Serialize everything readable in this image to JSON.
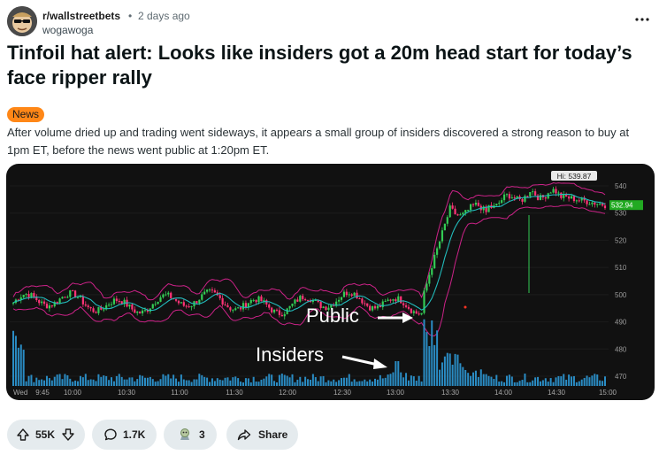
{
  "post": {
    "subreddit": "r/wallstreetbets",
    "separator": "•",
    "age": "2 days ago",
    "author": "wogawoga",
    "title": "Tinfoil hat alert: Looks like insiders got a 20m head start for today’s face ripper rally",
    "flair": "News",
    "flair_color": "#ff8717",
    "body": "After volume dried up and trading went sideways, it appears a small group of insiders discovered a strong reason to buy at 1pm ET, before the news went public at 1:20pm ET."
  },
  "chart": {
    "hi_label": "Hi: 539.87",
    "last_price_label": "532.94",
    "annotation_public": "Public",
    "annotation_insiders": "Insiders",
    "price_ticks": [
      "540",
      "530",
      "520",
      "510",
      "500",
      "490",
      "480",
      "470"
    ],
    "time_ticks": [
      "Wed",
      "9:45",
      "10:00",
      "10:30",
      "11:00",
      "11:30",
      "12:00",
      "12:30",
      "13:00",
      "13:30",
      "14:00",
      "14:30",
      "15:00"
    ],
    "colors": {
      "up": "#33cc55",
      "down": "#ff3377",
      "mean": "#22bbbb",
      "band": "#cc2288",
      "volume": "#2a8cc4",
      "last": "#22aa22"
    }
  },
  "actions": {
    "votes": "55K",
    "comments": "1.7K",
    "awards": "3",
    "share": "Share"
  }
}
